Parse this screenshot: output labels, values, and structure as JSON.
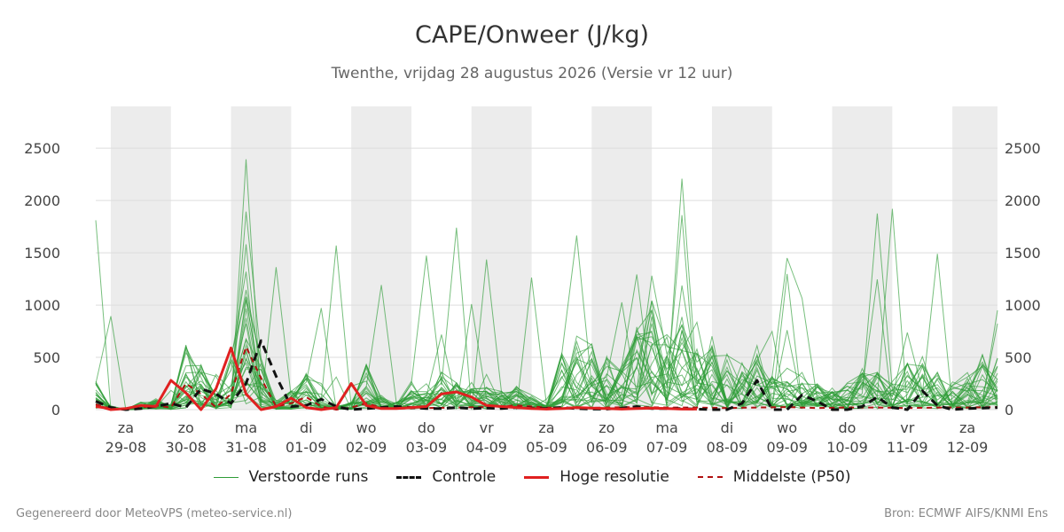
{
  "chart_data": {
    "type": "line",
    "title": "CAPE/Onweer (J/kg)",
    "subtitle": "Twenthe, vrijdag 28 augustus 2026 (Versie vr 12 uur)",
    "ylim": [
      0,
      2900
    ],
    "y_ticks": [
      0,
      500,
      1000,
      1500,
      2000,
      2500
    ],
    "x_range": [
      0,
      15
    ],
    "x_ticks": [
      {
        "x": 0.5,
        "day": "za",
        "date": "29-08"
      },
      {
        "x": 1.5,
        "day": "zo",
        "date": "30-08"
      },
      {
        "x": 2.5,
        "day": "ma",
        "date": "31-08"
      },
      {
        "x": 3.5,
        "day": "di",
        "date": "01-09"
      },
      {
        "x": 4.5,
        "day": "wo",
        "date": "02-09"
      },
      {
        "x": 5.5,
        "day": "do",
        "date": "03-09"
      },
      {
        "x": 6.5,
        "day": "vr",
        "date": "04-09"
      },
      {
        "x": 7.5,
        "day": "za",
        "date": "05-09"
      },
      {
        "x": 8.5,
        "day": "zo",
        "date": "06-09"
      },
      {
        "x": 9.5,
        "day": "ma",
        "date": "07-09"
      },
      {
        "x": 10.5,
        "day": "di",
        "date": "08-09"
      },
      {
        "x": 11.5,
        "day": "wo",
        "date": "09-09"
      },
      {
        "x": 12.5,
        "day": "do",
        "date": "10-09"
      },
      {
        "x": 13.5,
        "day": "vr",
        "date": "11-09"
      },
      {
        "x": 14.5,
        "day": "za",
        "date": "12-09"
      }
    ],
    "shaded_bands": [
      [
        0.25,
        1.25
      ],
      [
        2.25,
        3.25
      ],
      [
        4.25,
        5.25
      ],
      [
        6.25,
        7.25
      ],
      [
        8.25,
        9.25
      ],
      [
        10.25,
        11.25
      ],
      [
        12.25,
        13.25
      ],
      [
        14.25,
        15.0
      ]
    ],
    "series": [
      {
        "name": "Controle",
        "x": [
          0,
          0.25,
          0.5,
          0.75,
          1,
          1.25,
          1.5,
          1.75,
          2,
          2.25,
          2.5,
          2.75,
          3,
          3.25,
          3.5,
          3.75,
          4,
          4.25,
          4.5,
          4.75,
          5,
          5.25,
          5.5,
          5.75,
          6,
          6.25,
          6.5,
          6.75,
          7,
          7.25,
          7.5,
          7.75,
          8,
          8.25,
          8.5,
          8.75,
          9,
          9.25,
          9.5,
          9.75,
          10,
          10.25,
          10.5,
          10.75,
          11,
          11.25,
          11.5,
          11.75,
          12,
          12.25,
          12.5,
          12.75,
          13,
          13.25,
          13.5,
          13.75,
          14,
          14.25,
          14.5,
          14.75,
          15
        ],
        "values": [
          80,
          20,
          0,
          10,
          30,
          60,
          20,
          200,
          150,
          60,
          250,
          660,
          320,
          30,
          40,
          100,
          30,
          0,
          10,
          20,
          30,
          20,
          10,
          10,
          20,
          10,
          15,
          10,
          20,
          15,
          10,
          20,
          10,
          5,
          5,
          15,
          30,
          10,
          10,
          10,
          5,
          0,
          0,
          60,
          280,
          0,
          0,
          140,
          80,
          0,
          0,
          30,
          120,
          20,
          0,
          180,
          40,
          0,
          10,
          15,
          20
        ]
      },
      {
        "name": "Hoge resolutie",
        "x": [
          0,
          0.125,
          0.25,
          0.5,
          0.75,
          1,
          1.25,
          1.5,
          1.75,
          2,
          2.25,
          2.5,
          2.75,
          3,
          3.25,
          3.5,
          3.75,
          4,
          4.25,
          4.5,
          4.75,
          5,
          5.25,
          5.5,
          5.75,
          6,
          6.25,
          6.5,
          6.75,
          7,
          7.25,
          7.5,
          7.75,
          8,
          8.25,
          8.5,
          8.75,
          9,
          9.25,
          9.5,
          9.75,
          10
        ],
        "values": [
          30,
          20,
          0,
          10,
          40,
          30,
          280,
          160,
          0,
          200,
          590,
          150,
          0,
          30,
          110,
          20,
          0,
          20,
          250,
          40,
          10,
          10,
          20,
          30,
          150,
          170,
          120,
          40,
          30,
          20,
          10,
          5,
          10,
          20,
          15,
          10,
          5,
          10,
          15,
          10,
          5,
          5
        ]
      },
      {
        "name": "Middelste (P50)",
        "x": [
          0,
          0.25,
          0.5,
          0.75,
          1,
          1.25,
          1.5,
          1.75,
          2,
          2.25,
          2.5,
          2.75,
          3,
          3.25,
          3.5,
          3.75,
          4,
          4.25,
          4.5,
          4.75,
          5,
          5.5,
          6,
          6.5,
          7,
          7.5,
          8,
          8.5,
          9,
          9.5,
          10,
          10.5,
          11,
          11.5,
          12,
          12.5,
          13,
          13.5,
          14,
          14.5,
          15
        ],
        "values": [
          50,
          10,
          0,
          20,
          40,
          20,
          250,
          150,
          20,
          150,
          600,
          300,
          30,
          60,
          120,
          30,
          0,
          20,
          60,
          20,
          10,
          15,
          20,
          25,
          40,
          20,
          15,
          20,
          25,
          20,
          20,
          15,
          20,
          25,
          15,
          20,
          20,
          15,
          20,
          20,
          25
        ]
      }
    ],
    "ensemble_label": "Verstoorde runs",
    "ensemble_color": "#2e9c37",
    "colors": {
      "controle": "#111111",
      "hoge_resolutie": "#e02020",
      "p50": "#b01010",
      "band": "#ececec",
      "grid": "#dddddd"
    }
  },
  "legend": {
    "items": [
      {
        "label": "Verstoorde runs"
      },
      {
        "label": "Controle"
      },
      {
        "label": "Hoge resolutie"
      },
      {
        "label": "Middelste (P50)"
      }
    ]
  },
  "footer": {
    "left": "Gegenereerd door MeteoVPS (meteo-service.nl)",
    "right": "Bron: ECMWF AIFS/KNMI Ens"
  }
}
